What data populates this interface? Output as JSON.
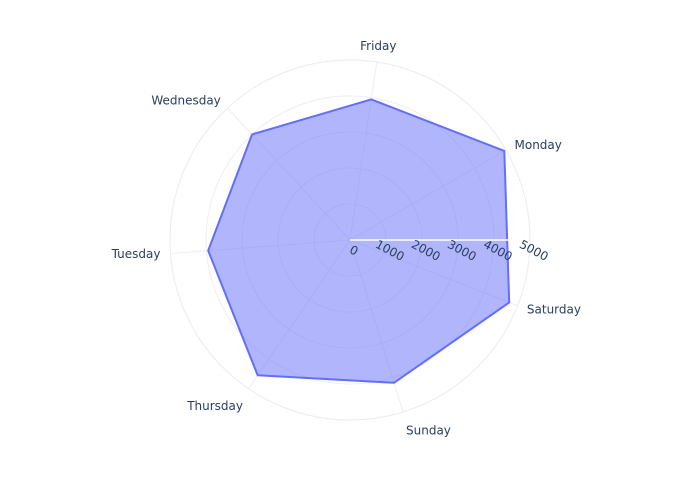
{
  "chart_data": {
    "type": "radar",
    "title": "",
    "categories": [
      "Monday",
      "Friday",
      "Wednesday",
      "Tuesday",
      "Thursday",
      "Sunday",
      "Saturday"
    ],
    "series": [
      {
        "values": [
          4950,
          3950,
          4000,
          3950,
          4550,
          4150,
          4750
        ]
      }
    ],
    "radial_axis": {
      "range": [
        0,
        5000
      ],
      "tickvals": [
        0,
        1000,
        2000,
        3000,
        4000,
        5000
      ],
      "ticktext": [
        "0",
        "1000",
        "2000",
        "3000",
        "4000",
        "5000"
      ]
    },
    "grid": true,
    "legend": false,
    "colors": {
      "series": "#636efa",
      "grid": "#eceef2",
      "text": "#2a3f5f"
    }
  }
}
